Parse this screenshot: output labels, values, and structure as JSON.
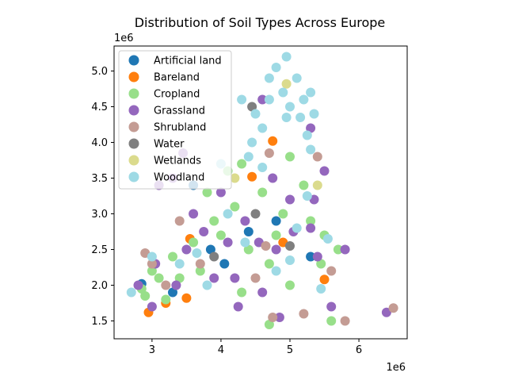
{
  "chart_data": {
    "type": "scatter",
    "title": "Distribution of Soil Types Across Europe",
    "xlabel": "",
    "ylabel": "",
    "x_offset_label": "1e6",
    "y_offset_label": "1e6",
    "xlim": [
      2.45,
      6.7
    ],
    "ylim": [
      1.25,
      5.35
    ],
    "xticks": [
      3,
      4,
      5,
      6
    ],
    "yticks": [
      1.5,
      2.0,
      2.5,
      3.0,
      3.5,
      4.0,
      4.5,
      5.0
    ],
    "xtick_labels": [
      "3",
      "4",
      "5",
      "6"
    ],
    "ytick_labels": [
      "1.5",
      "2.0",
      "2.5",
      "3.0",
      "3.5",
      "4.0",
      "4.5",
      "5.0"
    ],
    "legend_position": "top-left",
    "grid": false,
    "series": [
      {
        "name": "Artificial land",
        "color": "#1f77b4",
        "points": [
          [
            2.85,
            2.02
          ],
          [
            3.3,
            1.9
          ],
          [
            3.85,
            2.5
          ],
          [
            4.4,
            2.75
          ],
          [
            4.8,
            2.9
          ],
          [
            5.3,
            2.4
          ],
          [
            3.6,
            3.4
          ],
          [
            4.05,
            2.3
          ]
        ]
      },
      {
        "name": "Bareland",
        "color": "#ff7f0e",
        "points": [
          [
            3.55,
            2.65
          ],
          [
            4.75,
            4.02
          ],
          [
            5.5,
            2.08
          ],
          [
            3.5,
            1.82
          ],
          [
            2.95,
            1.62
          ],
          [
            4.45,
            3.52
          ],
          [
            4.9,
            2.6
          ],
          [
            3.2,
            1.75
          ]
        ]
      },
      {
        "name": "Cropland",
        "color": "#98df8a",
        "points": [
          [
            3.0,
            2.2
          ],
          [
            3.3,
            2.4
          ],
          [
            3.6,
            2.6
          ],
          [
            3.9,
            2.9
          ],
          [
            4.2,
            3.1
          ],
          [
            4.6,
            3.3
          ],
          [
            4.9,
            3.0
          ],
          [
            5.2,
            3.4
          ],
          [
            5.5,
            2.7
          ],
          [
            5.7,
            2.5
          ],
          [
            4.4,
            2.5
          ],
          [
            4.7,
            2.3
          ],
          [
            3.8,
            3.3
          ],
          [
            4.1,
            3.6
          ],
          [
            3.2,
            1.8
          ],
          [
            2.9,
            1.85
          ],
          [
            3.4,
            2.1
          ],
          [
            5.6,
            1.5
          ],
          [
            4.7,
            1.45
          ],
          [
            5.0,
            2.0
          ],
          [
            4.3,
            1.9
          ],
          [
            5.3,
            2.9
          ],
          [
            5.0,
            3.8
          ],
          [
            4.3,
            3.7
          ],
          [
            3.7,
            2.2
          ],
          [
            4.0,
            2.7
          ],
          [
            4.8,
            2.7
          ],
          [
            5.45,
            2.3
          ],
          [
            3.1,
            2.1
          ],
          [
            2.85,
            1.95
          ]
        ]
      },
      {
        "name": "Grassland",
        "color": "#9467bd",
        "points": [
          [
            3.45,
            3.85
          ],
          [
            3.3,
            3.5
          ],
          [
            3.1,
            3.4
          ],
          [
            2.8,
            2.0
          ],
          [
            3.05,
            2.3
          ],
          [
            3.5,
            2.5
          ],
          [
            3.75,
            2.75
          ],
          [
            4.0,
            3.3
          ],
          [
            4.35,
            2.9
          ],
          [
            4.55,
            2.6
          ],
          [
            4.8,
            2.5
          ],
          [
            5.0,
            3.2
          ],
          [
            5.3,
            2.8
          ],
          [
            5.5,
            3.6
          ],
          [
            5.4,
            2.4
          ],
          [
            4.2,
            2.1
          ],
          [
            4.25,
            1.7
          ],
          [
            4.6,
            1.9
          ],
          [
            4.85,
            1.55
          ],
          [
            5.6,
            1.7
          ],
          [
            6.4,
            1.62
          ],
          [
            5.8,
            2.5
          ],
          [
            3.35,
            2.0
          ],
          [
            5.3,
            4.2
          ],
          [
            4.6,
            4.6
          ],
          [
            3.6,
            3.0
          ],
          [
            4.1,
            2.6
          ],
          [
            5.05,
            2.75
          ],
          [
            3.9,
            2.1
          ],
          [
            4.75,
            3.5
          ],
          [
            5.35,
            3.2
          ],
          [
            3.0,
            1.7
          ]
        ]
      },
      {
        "name": "Shrubland",
        "color": "#c49c94",
        "points": [
          [
            3.0,
            2.3
          ],
          [
            3.2,
            2.0
          ],
          [
            3.7,
            2.3
          ],
          [
            4.5,
            2.1
          ],
          [
            4.75,
            1.55
          ],
          [
            5.2,
            1.6
          ],
          [
            5.8,
            1.5
          ],
          [
            5.4,
            3.8
          ],
          [
            6.5,
            1.68
          ],
          [
            4.7,
            3.85
          ],
          [
            5.6,
            2.2
          ],
          [
            3.4,
            2.9
          ],
          [
            4.65,
            2.55
          ],
          [
            2.9,
            2.45
          ]
        ]
      },
      {
        "name": "Water",
        "color": "#7f7f7f",
        "points": [
          [
            4.5,
            3.0
          ],
          [
            5.0,
            2.55
          ],
          [
            3.9,
            2.4
          ],
          [
            4.45,
            4.5
          ]
        ]
      },
      {
        "name": "Wetlands",
        "color": "#dbdb8d",
        "points": [
          [
            4.95,
            4.82
          ],
          [
            5.4,
            3.4
          ],
          [
            4.2,
            3.5
          ]
        ]
      },
      {
        "name": "Woodland",
        "color": "#9edae5",
        "points": [
          [
            4.45,
            4.0
          ],
          [
            4.5,
            4.4
          ],
          [
            4.7,
            4.6
          ],
          [
            4.8,
            5.05
          ],
          [
            4.95,
            5.2
          ],
          [
            5.1,
            4.9
          ],
          [
            5.2,
            4.6
          ],
          [
            5.35,
            4.4
          ],
          [
            5.25,
            4.1
          ],
          [
            4.95,
            4.35
          ],
          [
            4.6,
            4.2
          ],
          [
            4.4,
            3.8
          ],
          [
            5.3,
            3.9
          ],
          [
            3.0,
            2.4
          ],
          [
            2.7,
            1.9
          ],
          [
            3.4,
            2.3
          ],
          [
            3.8,
            2.0
          ],
          [
            4.0,
            3.7
          ],
          [
            4.1,
            3.0
          ],
          [
            4.35,
            2.6
          ],
          [
            4.8,
            2.2
          ],
          [
            5.0,
            2.35
          ],
          [
            5.55,
            2.65
          ],
          [
            5.25,
            3.25
          ],
          [
            4.6,
            3.65
          ],
          [
            3.65,
            2.45
          ],
          [
            5.1,
            2.8
          ],
          [
            5.45,
            1.95
          ],
          [
            4.9,
            4.7
          ],
          [
            5.15,
            4.35
          ],
          [
            4.7,
            4.9
          ],
          [
            4.3,
            4.6
          ],
          [
            5.0,
            4.5
          ],
          [
            5.3,
            4.7
          ]
        ]
      }
    ]
  }
}
